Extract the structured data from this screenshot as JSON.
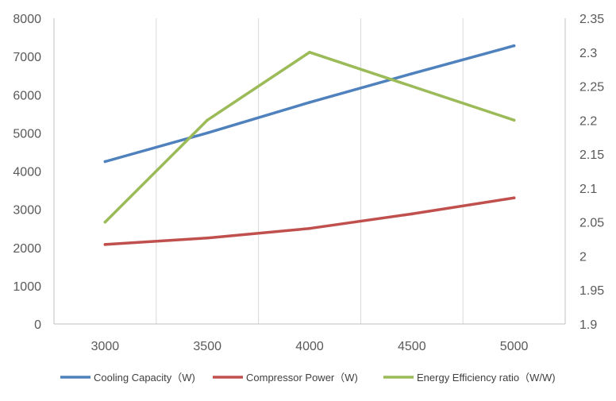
{
  "chart_data": {
    "type": "line",
    "categories": [
      "3000",
      "3500",
      "4000",
      "4500",
      "5000"
    ],
    "left_axis": {
      "min": 0,
      "max": 8000,
      "step": 1000,
      "ticks": [
        "0",
        "1000",
        "2000",
        "3000",
        "4000",
        "5000",
        "6000",
        "7000",
        "8000"
      ]
    },
    "right_axis": {
      "min": 1.9,
      "max": 2.35,
      "step": 0.05,
      "ticks": [
        "1.9",
        "1.95",
        "2",
        "2.05",
        "2.1",
        "2.15",
        "2.2",
        "2.25",
        "2.3",
        "2.35"
      ]
    },
    "grid": "vertical",
    "legend_position": "bottom",
    "series": [
      {
        "name": "Cooling Capacity（W)",
        "axis": "left",
        "color": "#4F81BD",
        "values": [
          4250,
          5000,
          5800,
          6550,
          7280
        ]
      },
      {
        "name": "Compressor Power（W)",
        "axis": "left",
        "color": "#C0504D",
        "values": [
          2080,
          2250,
          2500,
          2880,
          3300
        ]
      },
      {
        "name": "Energy Efficiency ratio（W/W)",
        "axis": "right",
        "color": "#9BBB59",
        "values": [
          2.05,
          2.2,
          2.3,
          2.25,
          2.2
        ]
      }
    ]
  }
}
